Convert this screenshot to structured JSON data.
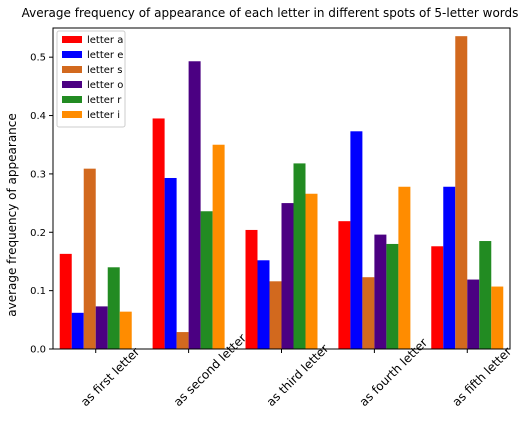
{
  "chart_data": {
    "type": "bar",
    "title": "Average frequency of appearance of each letter in different spots of 5-letter words",
    "xlabel": "",
    "ylabel": "average frequency of appearance",
    "categories": [
      "as first letter",
      "as second letter",
      "as third letter",
      "as fourth letter",
      "as fifth letter"
    ],
    "ylim": [
      0,
      0.55
    ],
    "yticks": [
      0.0,
      0.1,
      0.2,
      0.3,
      0.4,
      0.5
    ],
    "ytick_labels": [
      "0.0",
      "0.1",
      "0.2",
      "0.3",
      "0.4",
      "0.5"
    ],
    "grid": false,
    "legend_position": "top-left",
    "series": [
      {
        "name": "letter a",
        "color": "#ff0000",
        "values": [
          0.163,
          0.395,
          0.204,
          0.219,
          0.176
        ]
      },
      {
        "name": "letter e",
        "color": "#0000ff",
        "values": [
          0.062,
          0.293,
          0.152,
          0.373,
          0.278
        ]
      },
      {
        "name": "letter s",
        "color": "#d2691e",
        "values": [
          0.309,
          0.029,
          0.116,
          0.123,
          0.536
        ]
      },
      {
        "name": "letter o",
        "color": "#4b0082",
        "values": [
          0.073,
          0.493,
          0.25,
          0.196,
          0.119
        ]
      },
      {
        "name": "letter r",
        "color": "#228b22",
        "values": [
          0.14,
          0.236,
          0.318,
          0.18,
          0.185
        ]
      },
      {
        "name": "letter i",
        "color": "#ff8c00",
        "values": [
          0.064,
          0.35,
          0.266,
          0.278,
          0.107
        ]
      }
    ]
  }
}
